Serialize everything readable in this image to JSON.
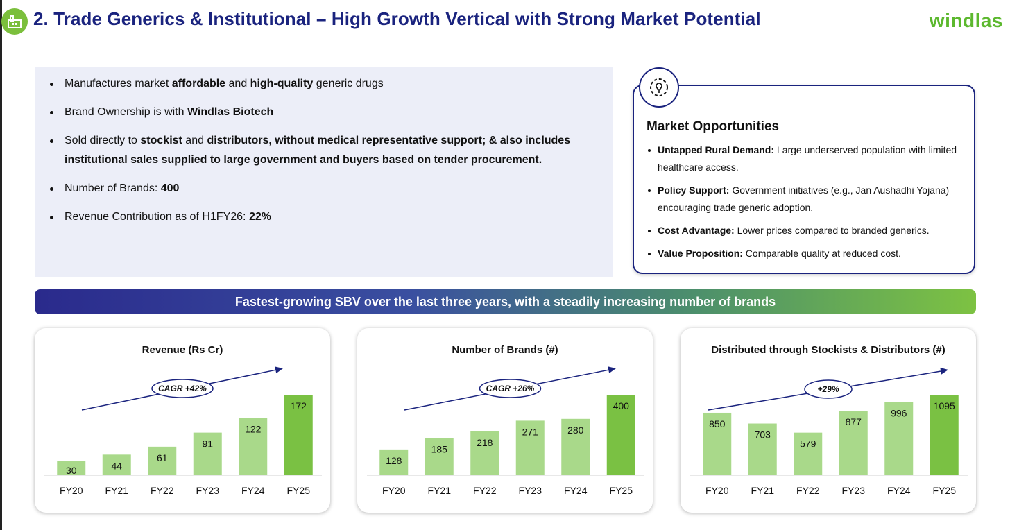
{
  "header": {
    "title": "2. Trade Generics & Institutional – High Growth Vertical with Strong Market Potential",
    "logo": "windlas"
  },
  "overview": [
    [
      {
        "t": "Manufactures market "
      },
      {
        "t": "affordable",
        "b": true
      },
      {
        "t": " and "
      },
      {
        "t": "high-quality",
        "b": true
      },
      {
        "t": " generic drugs"
      }
    ],
    [
      {
        "t": "Brand Ownership is with "
      },
      {
        "t": "Windlas Biotech",
        "b": true
      }
    ],
    [
      {
        "t": "Sold directly to "
      },
      {
        "t": "stockist",
        "b": true
      },
      {
        "t": " and "
      },
      {
        "t": "distributors, without medical representative support; & also includes institutional sales supplied to large government and buyers based on tender procurement.",
        "b": true
      }
    ],
    [
      {
        "t": "Number of Brands: "
      },
      {
        "t": "400",
        "b": true
      }
    ],
    [
      {
        "t": "Revenue Contribution as of H1FY26: "
      },
      {
        "t": "22%",
        "b": true
      }
    ]
  ],
  "market_opportunities": {
    "title": "Market Opportunities",
    "items": [
      {
        "label": "Untapped Rural Demand:",
        "text": " Large underserved population with limited healthcare access."
      },
      {
        "label": "Policy Support:",
        "text": " Government initiatives (e.g., Jan Aushadhi Yojana) encouraging trade generic adoption."
      },
      {
        "label": "Cost Advantage:",
        "text": " Lower prices compared to branded generics."
      },
      {
        "label": "Value Proposition:",
        "text": " Comparable quality at reduced cost."
      }
    ]
  },
  "banner": "Fastest-growing SBV over the last three years, with a steadily increasing number of brands",
  "colors": {
    "navy": "#1a237e",
    "bar_light": "#a9d98a",
    "bar_dark": "#7ac143",
    "brand_green": "#5cb82e"
  },
  "chart_data": [
    {
      "type": "bar",
      "title": "Revenue (Rs Cr)",
      "categories": [
        "FY20",
        "FY21",
        "FY22",
        "FY23",
        "FY24",
        "FY25"
      ],
      "values": [
        30,
        44,
        61,
        91,
        122,
        172
      ],
      "annotation": "CAGR +42%"
    },
    {
      "type": "bar",
      "title": "Number of Brands (#)",
      "categories": [
        "FY20",
        "FY21",
        "FY22",
        "FY23",
        "FY24",
        "FY25"
      ],
      "values": [
        128,
        185,
        218,
        271,
        280,
        400
      ],
      "annotation": "CAGR +26%"
    },
    {
      "type": "bar",
      "title": "Distributed through Stockists & Distributors (#)",
      "categories": [
        "FY20",
        "FY21",
        "FY22",
        "FY23",
        "FY24",
        "FY25"
      ],
      "values": [
        850,
        703,
        579,
        877,
        996,
        1095
      ],
      "annotation": "+29%"
    }
  ]
}
